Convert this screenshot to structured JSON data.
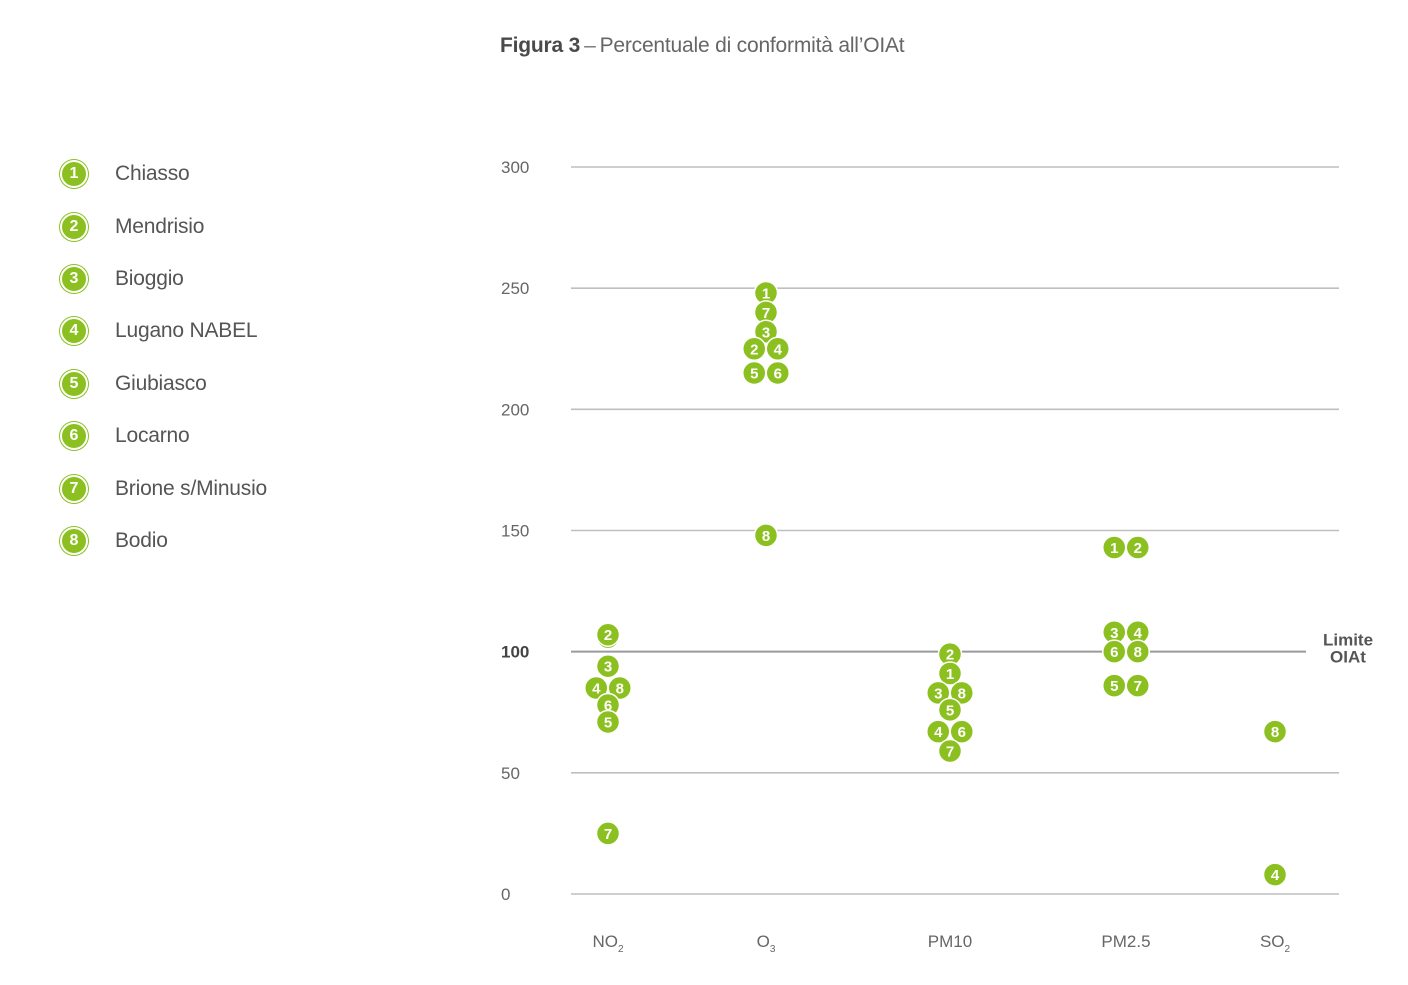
{
  "figure": {
    "title_bold": "Figura 3",
    "dash": "–",
    "title_rest": "Percentuale di conformità all’OIAt"
  },
  "colors": {
    "marker": "#8cc021",
    "grid": "#bfbfbf",
    "reference": "#9a9a9a"
  },
  "legend": {
    "items": [
      {
        "id": "1",
        "label": "Chiasso"
      },
      {
        "id": "2",
        "label": "Mendrisio"
      },
      {
        "id": "3",
        "label": "Bioggio"
      },
      {
        "id": "4",
        "label": "Lugano NABEL"
      },
      {
        "id": "5",
        "label": "Giubiasco"
      },
      {
        "id": "6",
        "label": "Locarno"
      },
      {
        "id": "7",
        "label": "Brione s/Minusio"
      },
      {
        "id": "8",
        "label": "Bodio"
      }
    ]
  },
  "chart_data": {
    "type": "scatter",
    "title": "Percentuale di conformità all’OIAt",
    "xlabel": "",
    "ylabel": "",
    "ylim": [
      0,
      300
    ],
    "yticks": [
      0,
      50,
      100,
      150,
      200,
      250,
      300
    ],
    "grid": true,
    "legend_placement": "left",
    "categories": [
      {
        "base": "NO",
        "sub": "2"
      },
      {
        "base": "O",
        "sub": "3"
      },
      {
        "base": "PM10",
        "sub": ""
      },
      {
        "base": "PM2.5",
        "sub": ""
      },
      {
        "base": "SO",
        "sub": "2"
      }
    ],
    "reference_line": {
      "value": 100,
      "label_lines": [
        "Limite",
        "OIAt"
      ]
    },
    "points": [
      {
        "category": 0,
        "station": "1",
        "y": 106
      },
      {
        "category": 0,
        "station": "2",
        "y": 107
      },
      {
        "category": 0,
        "station": "3",
        "y": 94
      },
      {
        "category": 0,
        "station": "4",
        "y": 85
      },
      {
        "category": 0,
        "station": "8",
        "y": 85
      },
      {
        "category": 0,
        "station": "6",
        "y": 78
      },
      {
        "category": 0,
        "station": "5",
        "y": 71
      },
      {
        "category": 0,
        "station": "7",
        "y": 25
      },
      {
        "category": 1,
        "station": "1",
        "y": 248
      },
      {
        "category": 1,
        "station": "7",
        "y": 240
      },
      {
        "category": 1,
        "station": "3",
        "y": 232
      },
      {
        "category": 1,
        "station": "2",
        "y": 225
      },
      {
        "category": 1,
        "station": "4",
        "y": 225
      },
      {
        "category": 1,
        "station": "5",
        "y": 215
      },
      {
        "category": 1,
        "station": "6",
        "y": 215
      },
      {
        "category": 1,
        "station": "8",
        "y": 148
      },
      {
        "category": 2,
        "station": "2",
        "y": 99
      },
      {
        "category": 2,
        "station": "1",
        "y": 91
      },
      {
        "category": 2,
        "station": "3",
        "y": 83
      },
      {
        "category": 2,
        "station": "8",
        "y": 83
      },
      {
        "category": 2,
        "station": "5",
        "y": 76
      },
      {
        "category": 2,
        "station": "4",
        "y": 67
      },
      {
        "category": 2,
        "station": "6",
        "y": 67
      },
      {
        "category": 2,
        "station": "7",
        "y": 59
      },
      {
        "category": 3,
        "station": "1",
        "y": 143
      },
      {
        "category": 3,
        "station": "2",
        "y": 143
      },
      {
        "category": 3,
        "station": "3",
        "y": 108
      },
      {
        "category": 3,
        "station": "4",
        "y": 108
      },
      {
        "category": 3,
        "station": "6",
        "y": 100
      },
      {
        "category": 3,
        "station": "8",
        "y": 100
      },
      {
        "category": 3,
        "station": "5",
        "y": 86
      },
      {
        "category": 3,
        "station": "7",
        "y": 86
      },
      {
        "category": 4,
        "station": "8",
        "y": 67
      },
      {
        "category": 4,
        "station": "4",
        "y": 8
      }
    ]
  }
}
